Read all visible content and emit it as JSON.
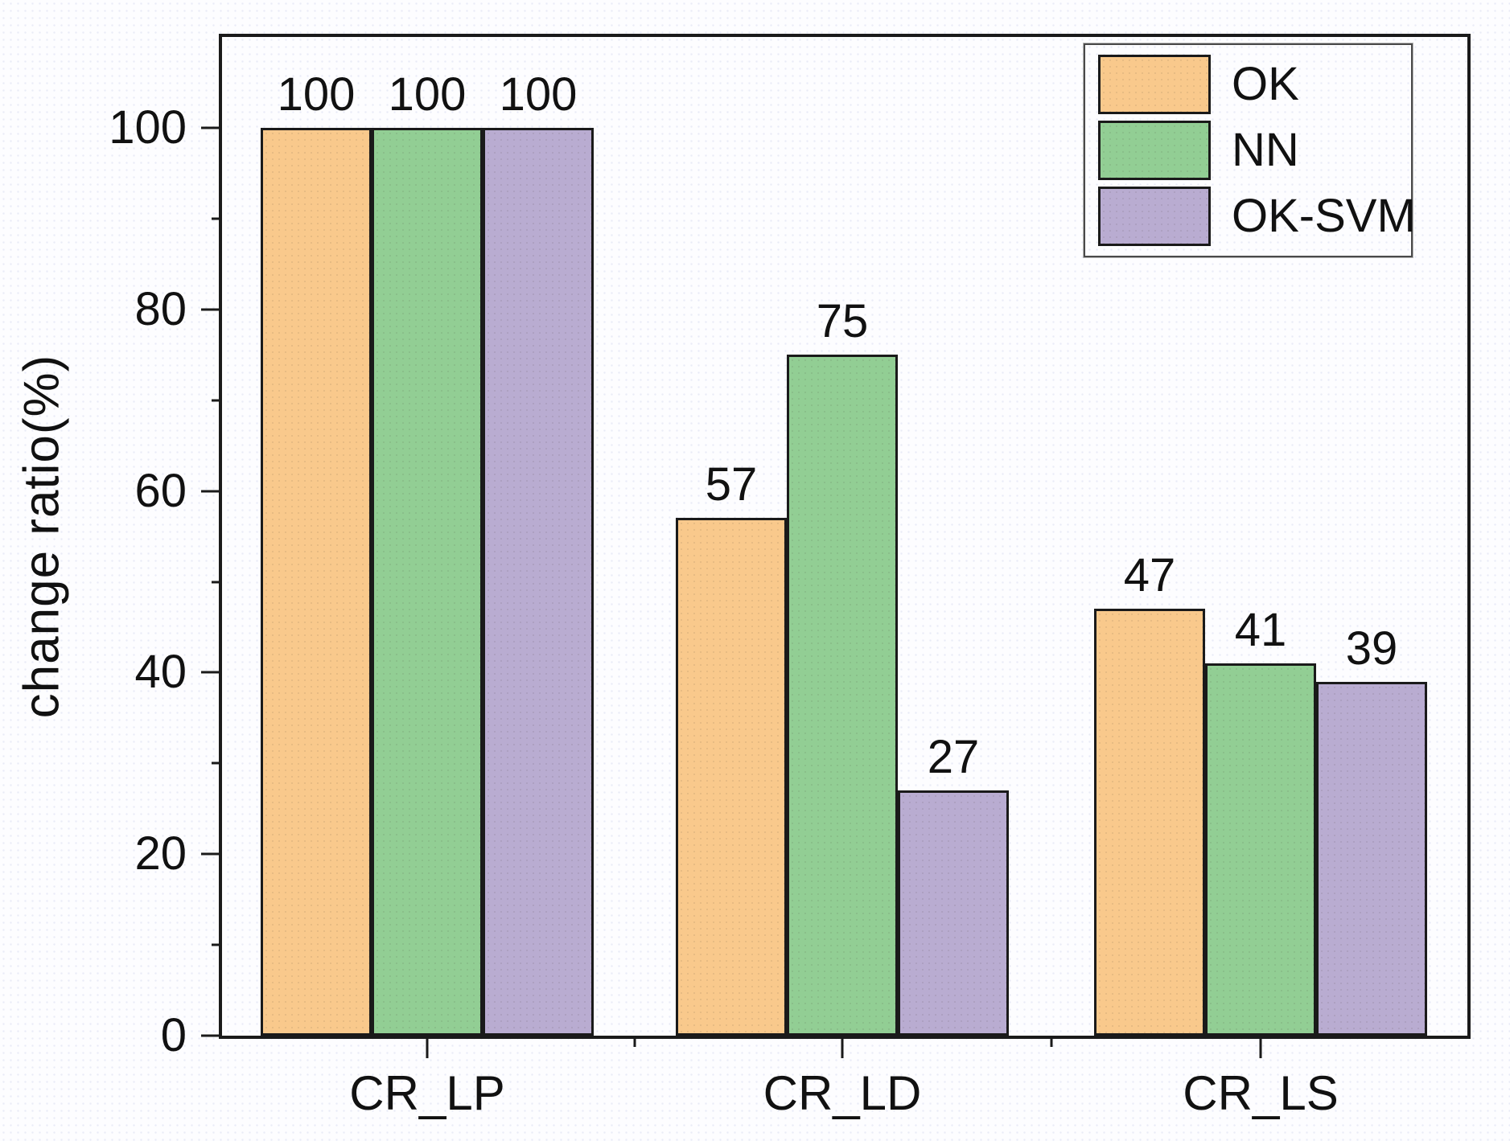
{
  "chart_data": {
    "type": "bar",
    "title": "",
    "categories": [
      "CR_LP",
      "CR_LD",
      "CR_LS"
    ],
    "series": [
      {
        "name": "OK",
        "color": "#F9C98C",
        "values": [
          100,
          57,
          47
        ]
      },
      {
        "name": "NN",
        "color": "#92CE94",
        "values": [
          100,
          75,
          41
        ]
      },
      {
        "name": "OK-SVM",
        "color": "#B9ACD1",
        "values": [
          100,
          27,
          39
        ]
      }
    ],
    "xlabel": "",
    "ylabel": "change ratio(%)",
    "ylim": [
      0,
      110
    ],
    "y_major_ticks": [
      0,
      20,
      40,
      60,
      80,
      100
    ],
    "y_minor_ticks": [
      10,
      30,
      50,
      70,
      90
    ],
    "bar_value_labels_shown": true,
    "grid": false,
    "legend": {
      "position": "top-right",
      "entries": [
        "OK",
        "NN",
        "OK-SVM"
      ]
    },
    "colors": {
      "frame": "#1a1a1a",
      "bar_border": "#1a1a1a",
      "text": "#111111",
      "background": "#fdfdff"
    }
  }
}
